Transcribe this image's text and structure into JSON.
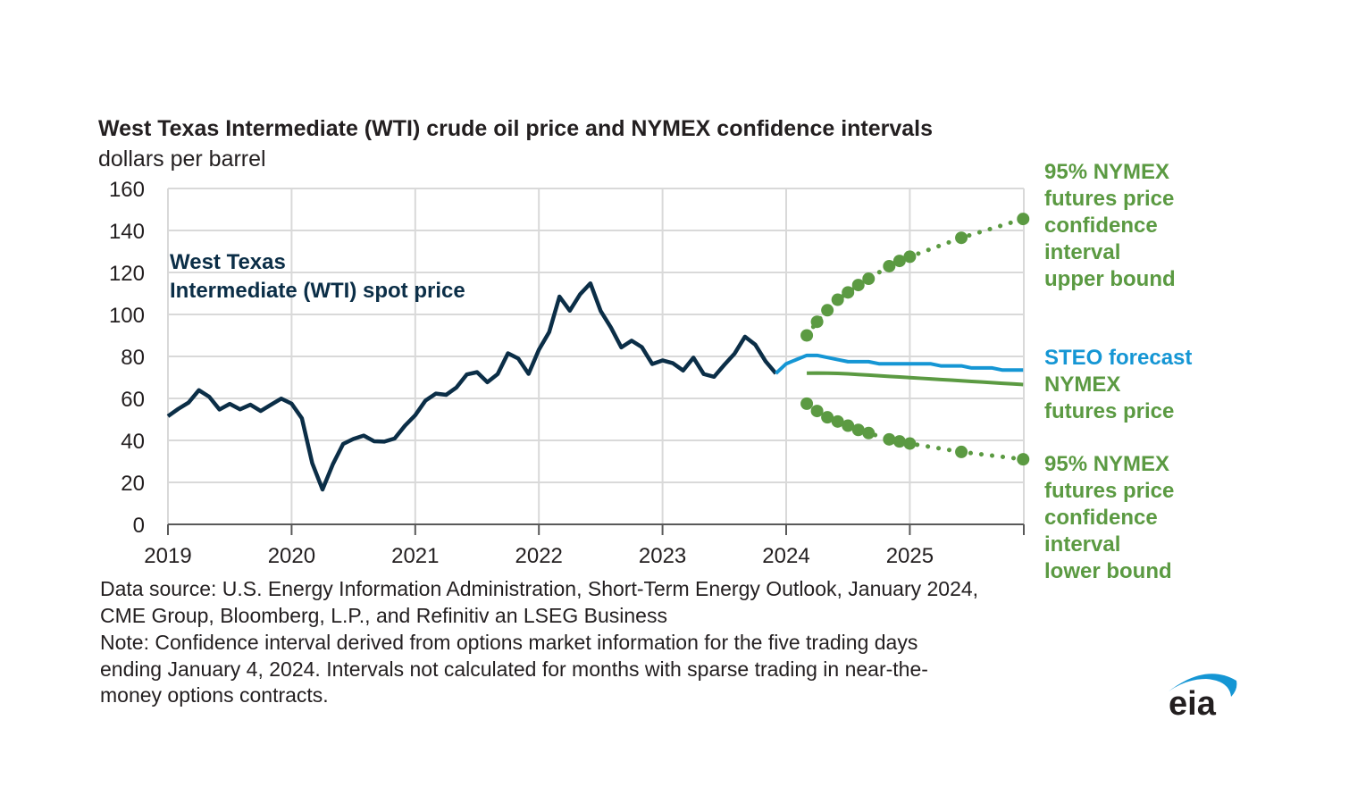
{
  "chart_data": {
    "type": "line",
    "title": "West Texas Intermediate (WTI) crude oil price and NYMEX confidence intervals",
    "subtitle": "dollars per barrel",
    "xlabel": "",
    "ylabel": "dollars per barrel",
    "ylim": [
      0,
      160
    ],
    "yticks": [
      "0",
      "20",
      "40",
      "60",
      "80",
      "100",
      "120",
      "140",
      "160"
    ],
    "xticks": [
      "2019",
      "2020",
      "2021",
      "2022",
      "2023",
      "2024",
      "2025"
    ],
    "x_range": [
      "2019-01",
      "2025-12"
    ],
    "grid": true,
    "series": [
      {
        "name": "West Texas Intermediate (WTI) spot price",
        "color": "#0b2e47",
        "style": "solid",
        "start": "2019-01",
        "values": [
          51.5,
          55.0,
          58.0,
          63.9,
          60.8,
          54.7,
          57.4,
          54.8,
          57.0,
          54.0,
          57.0,
          59.9,
          57.5,
          50.5,
          29.2,
          16.6,
          28.6,
          38.3,
          40.7,
          42.3,
          39.6,
          39.4,
          40.9,
          47.0,
          52.0,
          59.0,
          62.3,
          61.7,
          65.2,
          71.4,
          72.5,
          67.7,
          71.6,
          81.5,
          79.0,
          71.7,
          83.2,
          91.6,
          108.5,
          101.8,
          109.6,
          114.8,
          101.6,
          93.7,
          84.3,
          87.5,
          84.4,
          76.4,
          78.1,
          76.8,
          73.3,
          79.4,
          71.6,
          70.3,
          76.0,
          81.4,
          89.4,
          85.6,
          77.7,
          71.9
        ]
      },
      {
        "name": "STEO forecast",
        "color": "#1596d4",
        "style": "solid",
        "start": "2023-12",
        "values": [
          71.9,
          76.5,
          78.5,
          80.5,
          80.5,
          79.5,
          78.5,
          77.5,
          77.5,
          77.5,
          76.5,
          76.5,
          76.5,
          76.5,
          76.5,
          76.5,
          75.5,
          75.5,
          75.5,
          74.5,
          74.5,
          74.5,
          73.5,
          73.5,
          73.5
        ]
      },
      {
        "name": "NYMEX futures price",
        "color": "#5b9a42",
        "style": "solid",
        "start": "2024-03",
        "values": [
          72.0,
          72.1,
          72.0,
          71.9,
          71.7,
          71.4,
          71.1,
          70.8,
          70.5,
          70.2,
          69.9,
          69.6,
          69.3,
          69.0,
          68.7,
          68.4,
          68.1,
          67.8,
          67.5,
          67.2,
          66.9,
          66.6
        ]
      },
      {
        "name": "95% NYMEX futures price confidence interval upper bound",
        "color": "#5b9a42",
        "style": "dotted-markers",
        "start": "2024-03",
        "values": [
          90.0,
          96.5,
          102.0,
          107.0,
          110.5,
          114.0,
          117.0,
          null,
          123.0,
          125.5,
          127.5,
          null,
          null,
          null,
          null,
          136.5,
          null,
          null,
          null,
          null,
          null,
          145.5
        ],
        "markers": [
          "2024-03",
          "2024-04",
          "2024-05",
          "2024-06",
          "2024-07",
          "2024-08",
          "2024-09",
          "2024-11",
          "2024-12",
          "2025-01",
          "2025-06",
          "2025-12"
        ]
      },
      {
        "name": "95% NYMEX futures price confidence interval lower bound",
        "color": "#5b9a42",
        "style": "dotted-markers",
        "start": "2024-03",
        "values": [
          57.5,
          54.0,
          51.0,
          49.0,
          47.0,
          45.0,
          43.5,
          null,
          40.5,
          39.5,
          38.5,
          null,
          null,
          null,
          null,
          34.5,
          null,
          null,
          null,
          null,
          null,
          31.0
        ],
        "markers": [
          "2024-03",
          "2024-04",
          "2024-05",
          "2024-06",
          "2024-07",
          "2024-08",
          "2024-09",
          "2024-11",
          "2024-12",
          "2025-01",
          "2025-06",
          "2025-12"
        ]
      }
    ],
    "annotations": {
      "wti": [
        "West Texas",
        "Intermediate (WTI) spot price"
      ],
      "upper": [
        "95% NYMEX",
        "futures price",
        "confidence",
        "interval",
        "upper bound"
      ],
      "steo": [
        "STEO forecast"
      ],
      "nymex": [
        "NYMEX",
        "futures price"
      ],
      "lower": [
        "95% NYMEX",
        "futures price",
        "confidence",
        "interval",
        "lower bound"
      ]
    }
  },
  "footer": {
    "source": [
      "Data source: U.S. Energy Information Administration, Short-Term Energy Outlook, January 2024,",
      "CME Group, Bloomberg, L.P., and Refinitiv an LSEG Business"
    ],
    "note": [
      "Note: Confidence interval derived from options market information for the five trading days",
      "ending January 4, 2024. Intervals not calculated for months with sparse trading in near-the-",
      "money options contracts."
    ]
  },
  "logo": {
    "text": "eia",
    "arc_color": "#1596d4",
    "text_color": "#231f20"
  }
}
